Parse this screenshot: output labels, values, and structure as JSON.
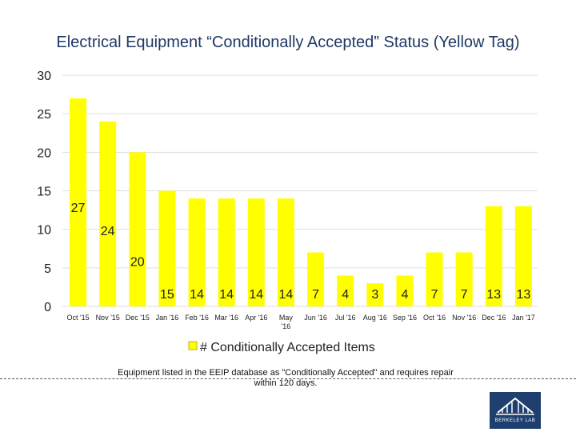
{
  "colors": {
    "bar": "#ffff00",
    "bar_stroke": "#b8b800",
    "grid": "#dddddd",
    "text": "#222222",
    "title": "#1f3864"
  },
  "chart_data": {
    "type": "bar",
    "title": "Electrical Equipment “Conditionally Accepted” Status (Yellow Tag)",
    "categories": [
      "Oct '15",
      "Nov '15",
      "Dec '15",
      "Jan '16",
      "Feb '16",
      "Mar '16",
      "Apr '16",
      "May '16",
      "Jun '16",
      "Jul '16",
      "Aug '16",
      "Sep '16",
      "Oct '16",
      "Nov '16",
      "Dec '16",
      "Jan '17"
    ],
    "series": [
      {
        "name": "# Conditionally Accepted Items",
        "values": [
          27,
          24,
          20,
          15,
          14,
          14,
          14,
          14,
          7,
          4,
          3,
          4,
          7,
          7,
          13,
          13
        ]
      }
    ],
    "ylim": [
      0,
      30
    ],
    "yticks": [
      0,
      5,
      10,
      15,
      20,
      25,
      30
    ],
    "grid": true,
    "legend": "bottom"
  },
  "caption": "Equipment listed in the EEIP database as \"Conditionally Accepted\" and requires repair within 120 days.",
  "logo": {
    "icon": "berkeley-lab-logo-icon",
    "text": "BERKELEY LAB"
  }
}
